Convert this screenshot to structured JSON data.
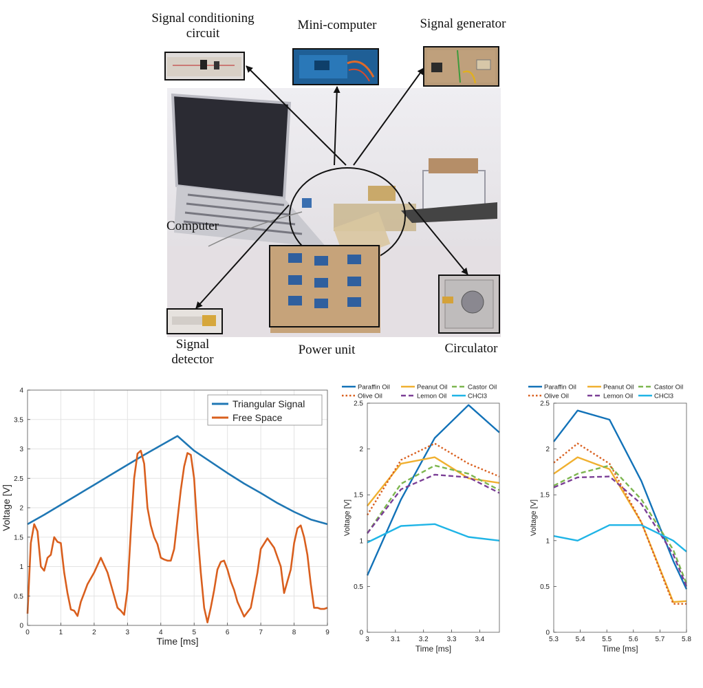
{
  "figure_top": {
    "labels": {
      "signal_conditioning": "Signal conditioning circuit",
      "signal_conditioning_line1": "Signal conditioning",
      "signal_conditioning_line2": "circuit",
      "mini_computer": "Mini-computer",
      "signal_generator": "Signal generator",
      "computer": "Computer",
      "signal_detector_line1": "Signal",
      "signal_detector_line2": "detector",
      "power_unit": "Power unit",
      "circulator": "Circulator"
    }
  },
  "chart_data": [
    {
      "type": "line",
      "xlabel": "Time [ms]",
      "ylabel": "Voltage [V]",
      "xlim": [
        0,
        9
      ],
      "ylim": [
        0,
        4
      ],
      "xticks": [
        0,
        1,
        2,
        3,
        4,
        5,
        6,
        7,
        8,
        9
      ],
      "yticks": [
        0,
        0.5,
        1,
        1.5,
        2,
        2.5,
        3,
        3.5,
        4
      ],
      "grid": true,
      "legend_position": "top-right",
      "series": [
        {
          "name": "Triangular Signal",
          "color": "#1f77b4",
          "x": [
            0,
            0.5,
            1.0,
            1.5,
            2.0,
            2.5,
            3.0,
            3.5,
            4.0,
            4.5,
            5.0,
            5.5,
            6.0,
            6.5,
            7.0,
            7.5,
            8.0,
            8.5,
            9.0
          ],
          "y": [
            1.72,
            1.88,
            2.05,
            2.22,
            2.39,
            2.56,
            2.73,
            2.9,
            3.06,
            3.22,
            2.97,
            2.78,
            2.59,
            2.41,
            2.25,
            2.08,
            1.93,
            1.8,
            1.72
          ]
        },
        {
          "name": "Free Space",
          "color": "#d95f1e",
          "x": [
            0,
            0.1,
            0.2,
            0.3,
            0.4,
            0.5,
            0.6,
            0.7,
            0.8,
            0.9,
            1.0,
            1.1,
            1.2,
            1.3,
            1.4,
            1.5,
            1.6,
            1.7,
            1.8,
            2.0,
            2.2,
            2.4,
            2.6,
            2.7,
            2.8,
            2.9,
            3.0,
            3.1,
            3.2,
            3.3,
            3.4,
            3.5,
            3.6,
            3.7,
            3.8,
            3.9,
            4.0,
            4.1,
            4.2,
            4.3,
            4.4,
            4.5,
            4.6,
            4.7,
            4.8,
            4.9,
            5.0,
            5.1,
            5.2,
            5.3,
            5.4,
            5.5,
            5.6,
            5.7,
            5.8,
            5.9,
            6.0,
            6.1,
            6.2,
            6.3,
            6.5,
            6.7,
            6.9,
            7.0,
            7.2,
            7.4,
            7.6,
            7.7,
            7.9,
            8.0,
            8.1,
            8.2,
            8.3,
            8.4,
            8.5,
            8.6,
            8.7,
            8.8,
            8.9,
            9.0
          ],
          "y": [
            0.2,
            1.4,
            1.72,
            1.6,
            1.0,
            0.93,
            1.15,
            1.2,
            1.5,
            1.42,
            1.4,
            0.9,
            0.55,
            0.27,
            0.25,
            0.16,
            0.4,
            0.55,
            0.7,
            0.9,
            1.15,
            0.9,
            0.5,
            0.3,
            0.25,
            0.18,
            0.6,
            1.6,
            2.5,
            2.92,
            2.97,
            2.75,
            2.0,
            1.7,
            1.5,
            1.38,
            1.15,
            1.12,
            1.1,
            1.1,
            1.3,
            1.8,
            2.3,
            2.7,
            2.93,
            2.9,
            2.5,
            1.6,
            0.9,
            0.3,
            0.05,
            0.3,
            0.6,
            0.95,
            1.08,
            1.1,
            0.95,
            0.75,
            0.6,
            0.4,
            0.15,
            0.3,
            0.9,
            1.3,
            1.48,
            1.32,
            1.0,
            0.55,
            0.95,
            1.4,
            1.65,
            1.7,
            1.5,
            1.2,
            0.7,
            0.3,
            0.3,
            0.28,
            0.28,
            0.3
          ]
        }
      ]
    },
    {
      "type": "line",
      "xlabel": "Time [ms]",
      "ylabel": "Voltage [V]",
      "xlim": [
        3,
        3.47
      ],
      "ylim": [
        0,
        2.5
      ],
      "xticks": [
        3,
        3.1,
        3.2,
        3.3,
        3.4
      ],
      "yticks": [
        0,
        0.5,
        1,
        1.5,
        2,
        2.5
      ],
      "grid": false,
      "legend_position": "top",
      "x": [
        3.0,
        3.12,
        3.24,
        3.36,
        3.47
      ],
      "series": [
        {
          "name": "Paraffin Oil",
          "color": "#1272b8",
          "dash": "solid",
          "values": [
            0.62,
            1.45,
            2.12,
            2.48,
            2.18
          ]
        },
        {
          "name": "Peanut Oil",
          "color": "#f0b030",
          "dash": "solid",
          "values": [
            1.38,
            1.84,
            1.91,
            1.68,
            1.63
          ]
        },
        {
          "name": "Castor Oil",
          "color": "#7db64f",
          "dash": "dashed",
          "values": [
            1.08,
            1.62,
            1.82,
            1.73,
            1.55
          ]
        },
        {
          "name": "Olive Oil",
          "color": "#d95f1e",
          "dash": "dotted",
          "values": [
            1.28,
            1.88,
            2.06,
            1.84,
            1.7
          ]
        },
        {
          "name": "Lemon Oil",
          "color": "#7b3f96",
          "dash": "dashed",
          "values": [
            1.08,
            1.56,
            1.72,
            1.69,
            1.52
          ]
        },
        {
          "name": "CHCl3",
          "color": "#1fb4e6",
          "dash": "solid",
          "values": [
            0.98,
            1.16,
            1.18,
            1.04,
            1.0
          ]
        }
      ]
    },
    {
      "type": "line",
      "xlabel": "Time [ms]",
      "ylabel": "Voltage [V]",
      "xlim": [
        5.3,
        5.8
      ],
      "ylim": [
        0,
        2.5
      ],
      "xticks": [
        5.3,
        5.4,
        5.5,
        5.6,
        5.7,
        5.8
      ],
      "yticks": [
        0,
        0.5,
        1,
        1.5,
        2,
        2.5
      ],
      "grid": false,
      "legend_position": "top",
      "x": [
        5.3,
        5.39,
        5.51,
        5.63,
        5.75,
        5.8
      ],
      "series": [
        {
          "name": "Paraffin Oil",
          "color": "#1272b8",
          "dash": "solid",
          "values": [
            2.08,
            2.42,
            2.32,
            1.65,
            0.78,
            0.47
          ]
        },
        {
          "name": "Peanut Oil",
          "color": "#f0b030",
          "dash": "solid",
          "values": [
            1.73,
            1.91,
            1.78,
            1.2,
            0.33,
            0.34
          ]
        },
        {
          "name": "Castor Oil",
          "color": "#7db64f",
          "dash": "dashed",
          "values": [
            1.6,
            1.73,
            1.82,
            1.45,
            0.9,
            0.53
          ]
        },
        {
          "name": "Olive Oil",
          "color": "#d95f1e",
          "dash": "dotted",
          "values": [
            1.85,
            2.06,
            1.84,
            1.2,
            0.31,
            0.31
          ]
        },
        {
          "name": "Lemon Oil",
          "color": "#7b3f96",
          "dash": "dashed",
          "values": [
            1.58,
            1.69,
            1.7,
            1.4,
            0.85,
            0.5
          ]
        },
        {
          "name": "CHCl3",
          "color": "#1fb4e6",
          "dash": "solid",
          "values": [
            1.05,
            1.0,
            1.17,
            1.17,
            1.0,
            0.88
          ]
        }
      ]
    }
  ]
}
